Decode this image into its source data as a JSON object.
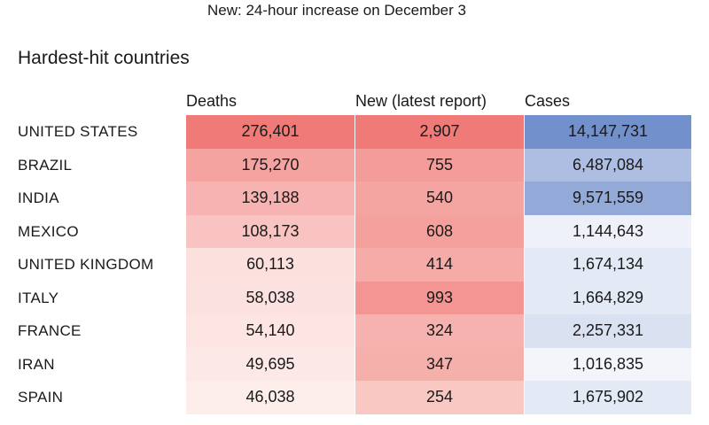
{
  "note": "New: 24-hour increase on December 3",
  "chart_data": {
    "type": "table",
    "title": "Hardest-hit countries",
    "columns": [
      "Deaths",
      "New (latest report)",
      "Cases"
    ],
    "rows": [
      {
        "country": "UNITED STATES",
        "deaths": 276401,
        "new": 2907,
        "cases": 14147731,
        "deaths_label": "276,401",
        "new_label": "2,907",
        "cases_label": "14,147,731"
      },
      {
        "country": "BRAZIL",
        "deaths": 175270,
        "new": 755,
        "cases": 6487084,
        "deaths_label": "175,270",
        "new_label": "755",
        "cases_label": "6,487,084"
      },
      {
        "country": "INDIA",
        "deaths": 139188,
        "new": 540,
        "cases": 9571559,
        "deaths_label": "139,188",
        "new_label": "540",
        "cases_label": "9,571,559"
      },
      {
        "country": "MEXICO",
        "deaths": 108173,
        "new": 608,
        "cases": 1144643,
        "deaths_label": "108,173",
        "new_label": "608",
        "cases_label": "1,144,643"
      },
      {
        "country": "UNITED KINGDOM",
        "deaths": 60113,
        "new": 414,
        "cases": 1674134,
        "deaths_label": "60,113",
        "new_label": "414",
        "cases_label": "1,674,134"
      },
      {
        "country": "ITALY",
        "deaths": 58038,
        "new": 993,
        "cases": 1664829,
        "deaths_label": "58,038",
        "new_label": "993",
        "cases_label": "1,664,829"
      },
      {
        "country": "FRANCE",
        "deaths": 54140,
        "new": 324,
        "cases": 2257331,
        "deaths_label": "54,140",
        "new_label": "324",
        "cases_label": "2,257,331"
      },
      {
        "country": "IRAN",
        "deaths": 49695,
        "new": 347,
        "cases": 1016835,
        "deaths_label": "49,695",
        "new_label": "347",
        "cases_label": "1,016,835"
      },
      {
        "country": "SPAIN",
        "deaths": 46038,
        "new": 254,
        "cases": 1675902,
        "deaths_label": "46,038",
        "new_label": "254",
        "cases_label": "1,675,902"
      }
    ],
    "colors": {
      "deaths_high": "#ef7a78",
      "deaths_low": "#fdeeec",
      "new_high": "#ef7a78",
      "new_low": "#f9c8c3",
      "cases_high": "#7290cc",
      "cases_low": "#f3f5fb"
    }
  }
}
